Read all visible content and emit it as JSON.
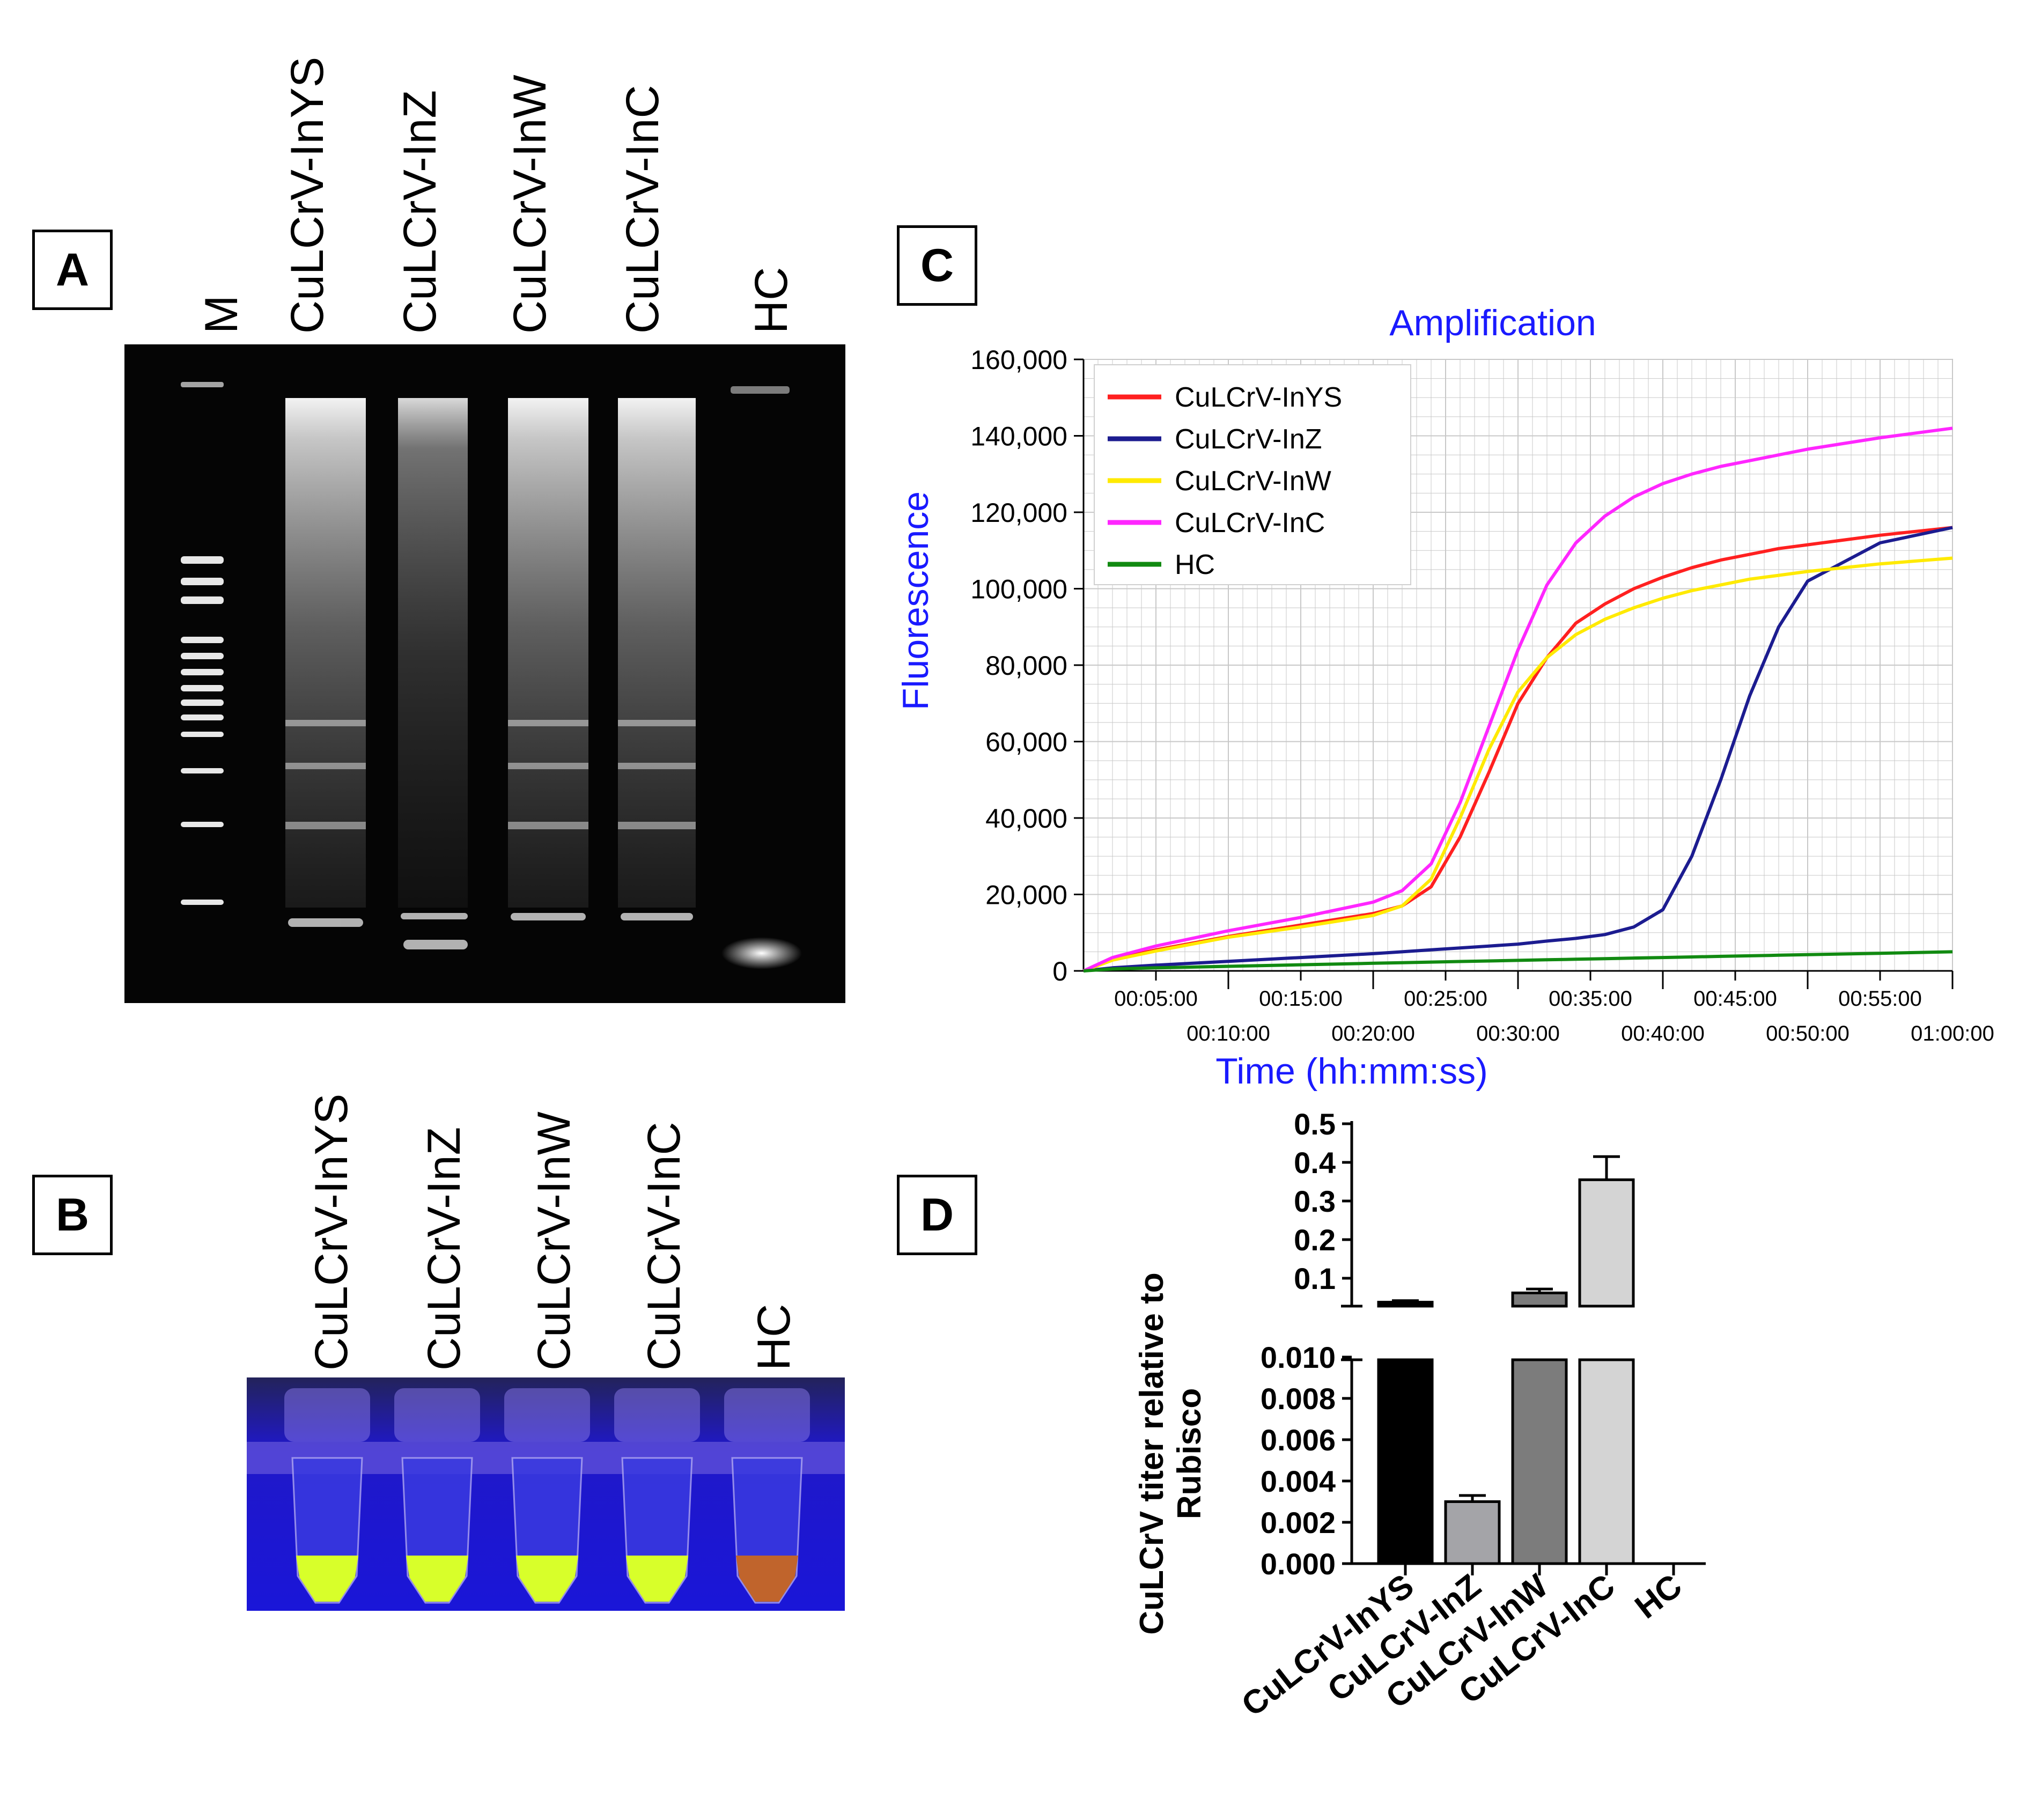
{
  "panels": {
    "a": "A",
    "b": "B",
    "c": "C",
    "d": "D"
  },
  "gel": {
    "lanes": [
      "M",
      "CuLCrV-InYS",
      "CuLCrV-InZ",
      "CuLCrV-InW",
      "CuLCrV-InC",
      "HC"
    ]
  },
  "tubes": {
    "lanes": [
      "CuLCrV-InYS",
      "CuLCrV-InZ",
      "CuLCrV-InW",
      "CuLCrV-InC",
      "HC"
    ],
    "colors": {
      "positive": "#d8ff2a",
      "negative": "#c0642c",
      "background": "#1a16d8"
    }
  },
  "amplification": {
    "title": "Amplification",
    "ylabel": "Fluorescence",
    "xlabel": "Time (hh:mm:ss)",
    "colors": {
      "title": "#1a1aff"
    },
    "chart_data": {
      "type": "line",
      "title": "Amplification",
      "xlabel": "Time (hh:mm:ss)",
      "ylabel": "Fluorescence",
      "ylim": [
        0,
        160000
      ],
      "xlim_minutes": [
        0,
        60
      ],
      "grid": true,
      "legend_position": "top-left",
      "y_ticks": [
        "0",
        "20,000",
        "40,000",
        "60,000",
        "80,000",
        "100,000",
        "120,000",
        "140,000",
        "160,000"
      ],
      "x_ticks": [
        "00:05:00",
        "00:10:00",
        "00:15:00",
        "00:20:00",
        "00:25:00",
        "00:30:00",
        "00:35:00",
        "00:40:00",
        "00:45:00",
        "00:50:00",
        "00:55:00",
        "01:00:00"
      ],
      "x_minutes": [
        0,
        2,
        5,
        10,
        15,
        20,
        22,
        24,
        26,
        28,
        30,
        32,
        34,
        36,
        38,
        40,
        42,
        44,
        46,
        48,
        50,
        55,
        60
      ],
      "series": [
        {
          "name": "CuLCrV-InYS",
          "color": "#ff2020",
          "values": [
            0,
            3000,
            5500,
            9000,
            12000,
            15000,
            17000,
            22000,
            35000,
            52000,
            70000,
            82000,
            91000,
            96000,
            100000,
            103000,
            105500,
            107500,
            109000,
            110500,
            111500,
            114000,
            116000
          ]
        },
        {
          "name": "CuLCrV-InZ",
          "color": "#1c1c90",
          "values": [
            0,
            800,
            1500,
            2500,
            3500,
            4500,
            5000,
            5500,
            6000,
            6500,
            7000,
            7800,
            8500,
            9500,
            11500,
            16000,
            30000,
            50000,
            72000,
            90000,
            102000,
            112000,
            116000
          ]
        },
        {
          "name": "CuLCrV-InW",
          "color": "#ffea00",
          "values": [
            0,
            2800,
            5200,
            8800,
            11500,
            14500,
            17000,
            24000,
            40000,
            58000,
            73000,
            82000,
            88000,
            92000,
            95000,
            97500,
            99500,
            101000,
            102500,
            103500,
            104500,
            106500,
            108000
          ]
        },
        {
          "name": "CuLCrV-InC",
          "color": "#ff26ff",
          "values": [
            0,
            3500,
            6500,
            10500,
            14000,
            18000,
            21000,
            28000,
            44000,
            64000,
            84000,
            101000,
            112000,
            119000,
            124000,
            127500,
            130000,
            132000,
            133500,
            135000,
            136500,
            139500,
            142000
          ]
        },
        {
          "name": "HC",
          "color": "#118a11",
          "values": [
            0,
            500,
            800,
            1200,
            1600,
            2000,
            2150,
            2300,
            2450,
            2600,
            2750,
            2900,
            3050,
            3200,
            3350,
            3500,
            3650,
            3800,
            3950,
            4100,
            4250,
            4600,
            5000
          ]
        }
      ]
    }
  },
  "titer": {
    "ylabel_line1": "CuLCrV titer relative to",
    "ylabel_line2": "Rubisco",
    "chart_data": {
      "type": "bar",
      "categories": [
        "CuLCrV-InYS",
        "CuLCrV-InZ",
        "CuLCrV-InW",
        "CuLCrV-InC",
        "HC"
      ],
      "values": [
        0.038,
        0.003,
        0.062,
        0.355,
        0
      ],
      "errors": [
        0.004,
        0.0003,
        0.01,
        0.06,
        0
      ],
      "colors": [
        "#000000",
        "#a4a4a8",
        "#7c7c7c",
        "#d4d4d4",
        "#ffffff"
      ],
      "axis_break": true,
      "lower_ylim": [
        0,
        0.01
      ],
      "upper_ylim": [
        0,
        0.5
      ],
      "lower_ticks": [
        "0.000",
        "0.002",
        "0.004",
        "0.006",
        "0.008",
        "0.010"
      ],
      "upper_ticks": [
        "0.1",
        "0.2",
        "0.3",
        "0.4",
        "0.5"
      ],
      "ylabel": "CuLCrV titer relative to Rubisco"
    }
  }
}
